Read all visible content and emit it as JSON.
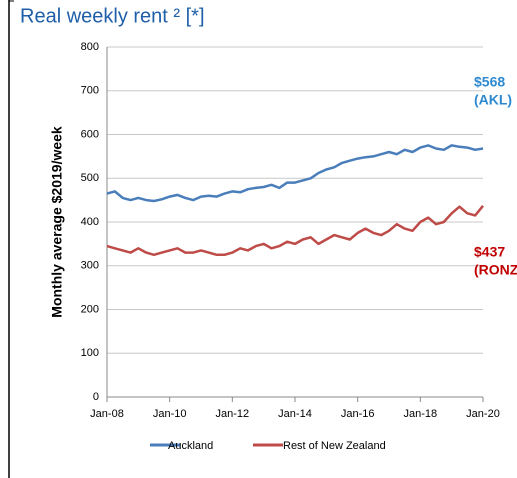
{
  "chart_data": {
    "type": "line",
    "title": "Real weekly rent ² [*]",
    "y_label": "Monthly average $2019/week",
    "categories": [
      "Jan-08",
      null,
      null,
      null,
      null,
      null,
      null,
      null,
      "Jan-10",
      null,
      null,
      null,
      null,
      null,
      null,
      null,
      "Jan-12",
      null,
      null,
      null,
      null,
      null,
      null,
      null,
      "Jan-14",
      null,
      null,
      null,
      null,
      null,
      null,
      null,
      "Jan-16",
      null,
      null,
      null,
      null,
      null,
      null,
      null,
      "Jan-18",
      null,
      null,
      null,
      null,
      null,
      null,
      null,
      "Jan-20"
    ],
    "series": [
      {
        "name": "Auckland",
        "color": "#4a7ebb",
        "values": [
          465,
          470,
          455,
          450,
          455,
          450,
          448,
          452,
          458,
          462,
          455,
          450,
          458,
          460,
          458,
          465,
          470,
          468,
          475,
          478,
          480,
          485,
          478,
          490,
          490,
          495,
          500,
          512,
          520,
          525,
          535,
          540,
          545,
          548,
          550,
          555,
          560,
          555,
          565,
          560,
          570,
          575,
          568,
          565,
          575,
          572,
          570,
          565,
          568
        ]
      },
      {
        "name": "Rest of New Zealand",
        "color": "#be4b48",
        "values": [
          345,
          340,
          335,
          330,
          340,
          330,
          325,
          330,
          335,
          340,
          330,
          330,
          335,
          330,
          325,
          325,
          330,
          340,
          335,
          345,
          350,
          340,
          345,
          355,
          350,
          360,
          365,
          350,
          360,
          370,
          365,
          360,
          375,
          385,
          375,
          370,
          380,
          395,
          385,
          380,
          400,
          410,
          395,
          400,
          420,
          435,
          420,
          415,
          437
        ]
      }
    ],
    "annotations": [
      {
        "lines": [
          "$568",
          "(AKL)"
        ],
        "color": "#2e8ad0"
      },
      {
        "lines": [
          "$437",
          "(RONZ)"
        ],
        "color": "#c00000"
      }
    ],
    "ylim": [
      0,
      800
    ],
    "yticks": [
      0,
      100,
      200,
      300,
      400,
      500,
      600,
      700,
      800
    ],
    "grid": true
  }
}
